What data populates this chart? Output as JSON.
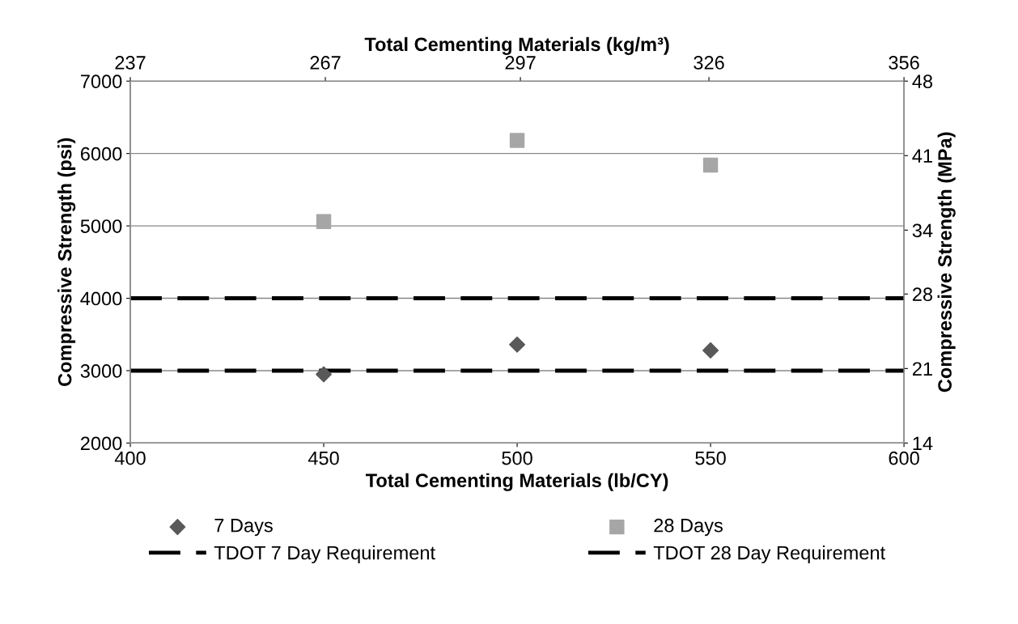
{
  "chart_data": {
    "type": "scatter",
    "xlabel": "Total Cementing Materials (lb/CY)",
    "ylabel": "Compressive Strength (psi)",
    "x2label": "Total Cementing Materials (kg/m³)",
    "y2label": "Compressive Strength (MPa)",
    "series": [
      {
        "name": "7 Days",
        "color": "#595959",
        "marker": "diamond",
        "x": [
          450,
          500,
          550
        ],
        "values": [
          2950,
          3360,
          3280
        ]
      },
      {
        "name": "28 Days",
        "color": "#a6a6a6",
        "marker": "square",
        "x": [
          450,
          500,
          550
        ],
        "values": [
          5060,
          6180,
          5840
        ]
      },
      {
        "name": "TDOT 7 Day Requirement",
        "type": "line",
        "color": "#000000",
        "marker": "none",
        "line_style": "dashed",
        "x": [
          400,
          600
        ],
        "values": [
          3000,
          3000
        ]
      },
      {
        "name": "TDOT 28 Day Requirement",
        "type": "line",
        "color": "#000000",
        "marker": "none",
        "line_style": "dashed",
        "x": [
          400,
          600
        ],
        "values": [
          4000,
          4000
        ]
      }
    ],
    "xlim": [
      400,
      600
    ],
    "xticks": [
      400,
      450,
      500,
      550,
      600
    ],
    "ylim": [
      2000,
      7000
    ],
    "yticks": [
      2000,
      3000,
      4000,
      5000,
      6000,
      7000
    ],
    "x2lim": [
      237,
      356
    ],
    "x2ticks": [
      237,
      267,
      297,
      326,
      356
    ],
    "y2lim": [
      14,
      48
    ],
    "y2ticks": [
      14,
      21,
      28,
      34,
      41,
      48
    ],
    "grid": "y",
    "legend": "bottom"
  }
}
